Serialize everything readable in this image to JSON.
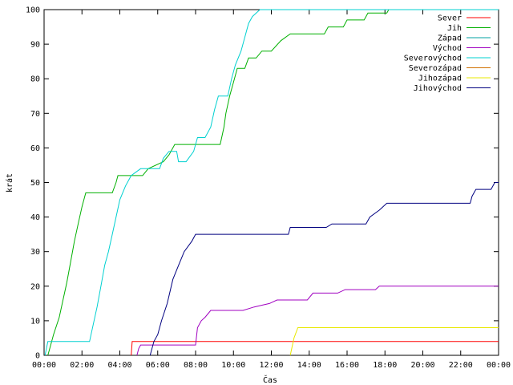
{
  "chart_data": {
    "type": "line",
    "xlabel": "Čas",
    "ylabel": "krát",
    "xlim": [
      0,
      24
    ],
    "ylim": [
      0,
      100
    ],
    "x_ticks": [
      "00:00",
      "02:00",
      "04:00",
      "06:00",
      "08:00",
      "10:00",
      "12:00",
      "14:00",
      "16:00",
      "18:00",
      "20:00",
      "22:00",
      "00:00"
    ],
    "y_ticks": [
      0,
      10,
      20,
      30,
      40,
      50,
      60,
      70,
      80,
      90,
      100
    ],
    "grid": false,
    "legend_position": "top-right",
    "series": [
      {
        "name": "Sever",
        "color": "#ff0000",
        "points": [
          [
            4.6,
            0
          ],
          [
            4.65,
            4
          ],
          [
            24,
            4
          ]
        ]
      },
      {
        "name": "Jih",
        "color": "#00b000",
        "points": [
          [
            0.2,
            0
          ],
          [
            0.3,
            2
          ],
          [
            0.5,
            6
          ],
          [
            0.8,
            11
          ],
          [
            1.0,
            16
          ],
          [
            1.2,
            21
          ],
          [
            1.4,
            27
          ],
          [
            1.6,
            33
          ],
          [
            1.8,
            38
          ],
          [
            2.0,
            43
          ],
          [
            2.2,
            47
          ],
          [
            3.6,
            47
          ],
          [
            3.8,
            50
          ],
          [
            3.9,
            52
          ],
          [
            5.2,
            52
          ],
          [
            5.5,
            54
          ],
          [
            6.3,
            56
          ],
          [
            6.6,
            58
          ],
          [
            6.9,
            61
          ],
          [
            9.3,
            61
          ],
          [
            9.5,
            66
          ],
          [
            9.6,
            70
          ],
          [
            9.8,
            75
          ],
          [
            10.0,
            79
          ],
          [
            10.2,
            83
          ],
          [
            10.6,
            83
          ],
          [
            10.8,
            86
          ],
          [
            11.2,
            86
          ],
          [
            11.5,
            88
          ],
          [
            12.0,
            88
          ],
          [
            12.5,
            91
          ],
          [
            13.0,
            93
          ],
          [
            14.8,
            93
          ],
          [
            15.0,
            95
          ],
          [
            15.8,
            95
          ],
          [
            16.0,
            97
          ],
          [
            16.9,
            97
          ],
          [
            17.1,
            99
          ],
          [
            18.1,
            99
          ],
          [
            18.2,
            100
          ],
          [
            24,
            100
          ]
        ]
      },
      {
        "name": "Západ",
        "color": "#00a0a0",
        "points": []
      },
      {
        "name": "Východ",
        "color": "#a000c0",
        "points": [
          [
            4.9,
            0
          ],
          [
            5.0,
            2
          ],
          [
            5.1,
            3
          ],
          [
            8.0,
            3
          ],
          [
            8.1,
            8
          ],
          [
            8.3,
            10
          ],
          [
            8.5,
            11
          ],
          [
            8.8,
            13
          ],
          [
            10.5,
            13
          ],
          [
            11.1,
            14
          ],
          [
            11.9,
            15
          ],
          [
            12.3,
            16
          ],
          [
            13.9,
            16
          ],
          [
            14.2,
            18
          ],
          [
            15.5,
            18
          ],
          [
            15.9,
            19
          ],
          [
            17.5,
            19
          ],
          [
            17.7,
            20
          ],
          [
            24,
            20
          ]
        ]
      },
      {
        "name": "Severovýchod",
        "color": "#00d0d0",
        "points": [
          [
            0.05,
            0
          ],
          [
            0.2,
            4
          ],
          [
            2.4,
            4
          ],
          [
            2.6,
            9
          ],
          [
            2.8,
            14
          ],
          [
            3.0,
            20
          ],
          [
            3.2,
            26
          ],
          [
            3.4,
            30
          ],
          [
            3.6,
            35
          ],
          [
            3.8,
            40
          ],
          [
            4.0,
            45
          ],
          [
            4.3,
            49
          ],
          [
            4.6,
            52
          ],
          [
            5.1,
            54
          ],
          [
            6.1,
            54
          ],
          [
            6.3,
            57
          ],
          [
            6.6,
            59
          ],
          [
            7.0,
            59
          ],
          [
            7.1,
            56
          ],
          [
            7.5,
            56
          ],
          [
            7.9,
            59
          ],
          [
            8.1,
            63
          ],
          [
            8.5,
            63
          ],
          [
            8.8,
            66
          ],
          [
            9.0,
            71
          ],
          [
            9.2,
            75
          ],
          [
            9.7,
            75
          ],
          [
            9.9,
            80
          ],
          [
            10.1,
            84
          ],
          [
            10.4,
            88
          ],
          [
            10.6,
            92
          ],
          [
            10.8,
            96
          ],
          [
            11.0,
            98
          ],
          [
            11.4,
            100
          ],
          [
            24,
            100
          ]
        ]
      },
      {
        "name": "Severozápad",
        "color": "#d07000",
        "points": []
      },
      {
        "name": "Jihozápad",
        "color": "#e8e800",
        "points": [
          [
            13.0,
            0
          ],
          [
            13.2,
            5
          ],
          [
            13.4,
            8
          ],
          [
            24,
            8
          ]
        ]
      },
      {
        "name": "Jihovýchod",
        "color": "#000080",
        "points": [
          [
            5.6,
            0
          ],
          [
            5.8,
            4
          ],
          [
            6.0,
            6
          ],
          [
            6.2,
            10
          ],
          [
            6.5,
            15
          ],
          [
            6.8,
            22
          ],
          [
            7.1,
            26
          ],
          [
            7.4,
            30
          ],
          [
            7.8,
            33
          ],
          [
            8.0,
            35
          ],
          [
            12.9,
            35
          ],
          [
            13.0,
            37
          ],
          [
            14.9,
            37
          ],
          [
            15.2,
            38
          ],
          [
            17.0,
            38
          ],
          [
            17.2,
            40
          ],
          [
            17.7,
            42
          ],
          [
            18.1,
            44
          ],
          [
            22.5,
            44
          ],
          [
            22.6,
            46
          ],
          [
            22.8,
            48
          ],
          [
            23.6,
            48
          ],
          [
            23.8,
            50
          ],
          [
            24,
            50
          ]
        ]
      }
    ]
  }
}
